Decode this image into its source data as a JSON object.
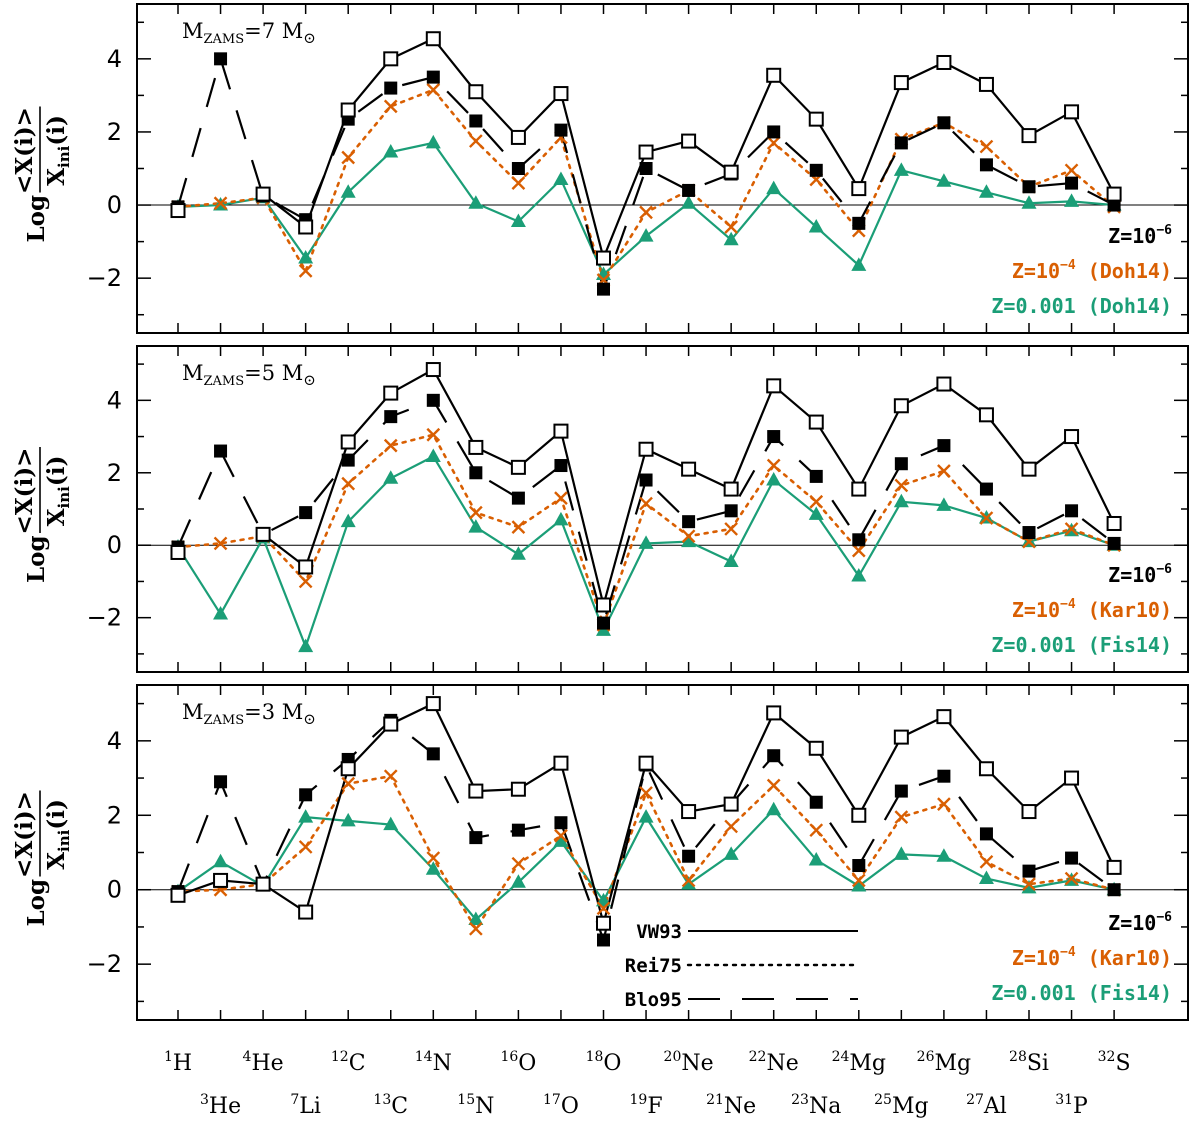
{
  "chart_data": {
    "type": "line",
    "ylabel": "Log <X(i)>/X_ini(i)",
    "ylabel_parts": {
      "log": "Log",
      "numerator": "<X(i)>",
      "denominator": "X",
      "denominator_sub": "ini",
      "denominator_tail": "(i)"
    },
    "ylim": [
      -3.5,
      5.5
    ],
    "yticks": [
      -2,
      0,
      2,
      4
    ],
    "ytick_labels": [
      "−2",
      "0",
      "2",
      "4"
    ],
    "isotopes": [
      {
        "mass": "1",
        "el": "H",
        "row": 1
      },
      {
        "mass": "3",
        "el": "He",
        "row": 2
      },
      {
        "mass": "4",
        "el": "He",
        "row": 1
      },
      {
        "mass": "7",
        "el": "Li",
        "row": 2
      },
      {
        "mass": "12",
        "el": "C",
        "row": 1
      },
      {
        "mass": "13",
        "el": "C",
        "row": 2
      },
      {
        "mass": "14",
        "el": "N",
        "row": 1
      },
      {
        "mass": "15",
        "el": "N",
        "row": 2
      },
      {
        "mass": "16",
        "el": "O",
        "row": 1
      },
      {
        "mass": "17",
        "el": "O",
        "row": 2
      },
      {
        "mass": "18",
        "el": "O",
        "row": 1
      },
      {
        "mass": "19",
        "el": "F",
        "row": 2
      },
      {
        "mass": "20",
        "el": "Ne",
        "row": 1
      },
      {
        "mass": "21",
        "el": "Ne",
        "row": 2
      },
      {
        "mass": "22",
        "el": "Ne",
        "row": 1
      },
      {
        "mass": "23",
        "el": "Na",
        "row": 2
      },
      {
        "mass": "24",
        "el": "Mg",
        "row": 1
      },
      {
        "mass": "25",
        "el": "Mg",
        "row": 2
      },
      {
        "mass": "26",
        "el": "Mg",
        "row": 1
      },
      {
        "mass": "27",
        "el": "Al",
        "row": 2
      },
      {
        "mass": "28",
        "el": "Si",
        "row": 1
      },
      {
        "mass": "31",
        "el": "P",
        "row": 2
      },
      {
        "mass": "32",
        "el": "S",
        "row": 1
      }
    ],
    "colors": {
      "black": "#000000",
      "orange": "#d95f02",
      "green": "#1b9e77"
    },
    "legend": {
      "position": "bottom-center of lowest panel",
      "items": [
        {
          "label": "VW93",
          "style": "solid"
        },
        {
          "label": "Rei75",
          "style": "dotted"
        },
        {
          "label": "Blo95",
          "style": "dashed"
        }
      ]
    },
    "panels": [
      {
        "mass_label": {
          "prefix": "M",
          "sub": "ZAMS",
          "value": "=7",
          "unit": "M",
          "sun": "⊙"
        },
        "z_labels": [
          {
            "text": "Z=10",
            "exp": "−6",
            "tail": "",
            "color": "#000000"
          },
          {
            "text": "Z=10",
            "exp": "−4",
            "tail": " (Doh14)",
            "color": "#d95f02"
          },
          {
            "text": "Z=0.001 (Doh14)",
            "exp": "",
            "tail": "",
            "color": "#1b9e77"
          }
        ],
        "series": [
          {
            "name": "Z=1e-6 VW93 (open squares)",
            "marker": "open-square",
            "line": "solid",
            "color": "#000000",
            "values": [
              -0.15,
              null,
              0.3,
              -0.6,
              2.6,
              4.0,
              4.55,
              3.1,
              1.85,
              3.05,
              -1.45,
              1.45,
              1.75,
              0.9,
              3.55,
              2.35,
              0.45,
              3.35,
              3.9,
              3.3,
              1.9,
              2.55,
              0.3
            ]
          },
          {
            "name": "Z=1e-6 Blo95 (filled squares)",
            "marker": "filled-square",
            "line": "dashed",
            "color": "#000000",
            "values": [
              -0.05,
              4.0,
              0.25,
              -0.4,
              2.35,
              3.2,
              3.5,
              2.3,
              1.0,
              2.05,
              -2.3,
              1.0,
              0.4,
              0.85,
              2.0,
              0.95,
              -0.5,
              1.7,
              2.25,
              1.1,
              0.5,
              0.6,
              0.0
            ]
          },
          {
            "name": "Z=1e-4 Rei75 (crosses)",
            "marker": "cross",
            "line": "dotted",
            "color": "#d95f02",
            "values": [
              -0.05,
              0.05,
              0.2,
              -1.8,
              1.3,
              2.7,
              3.15,
              1.75,
              0.6,
              1.85,
              -2.05,
              -0.2,
              0.4,
              -0.6,
              1.7,
              0.7,
              -0.7,
              1.8,
              2.25,
              1.6,
              0.5,
              0.95,
              -0.05
            ]
          },
          {
            "name": "Z=0.001 (triangles)",
            "marker": "filled-triangle",
            "line": "solid",
            "color": "#1b9e77",
            "values": [
              -0.05,
              0.0,
              0.2,
              -1.45,
              0.35,
              1.45,
              1.7,
              0.05,
              -0.45,
              0.7,
              -1.9,
              -0.85,
              0.05,
              -0.95,
              0.45,
              -0.6,
              -1.65,
              0.95,
              0.65,
              0.35,
              0.05,
              0.1,
              0.0
            ]
          }
        ]
      },
      {
        "mass_label": {
          "prefix": "M",
          "sub": "ZAMS",
          "value": "=5",
          "unit": "M",
          "sun": "⊙"
        },
        "z_labels": [
          {
            "text": "Z=10",
            "exp": "−6",
            "tail": "",
            "color": "#000000"
          },
          {
            "text": "Z=10",
            "exp": "−4",
            "tail": " (Kar10)",
            "color": "#d95f02"
          },
          {
            "text": "Z=0.001 (Fis14)",
            "exp": "",
            "tail": "",
            "color": "#1b9e77"
          }
        ],
        "series": [
          {
            "name": "Z=1e-6 VW93 (open squares)",
            "marker": "open-square",
            "line": "solid",
            "color": "#000000",
            "values": [
              -0.2,
              null,
              0.3,
              -0.6,
              2.85,
              4.2,
              4.85,
              2.7,
              2.15,
              3.15,
              -1.65,
              2.65,
              2.1,
              1.55,
              4.4,
              3.4,
              1.55,
              3.85,
              4.45,
              3.6,
              2.1,
              3.0,
              0.6
            ]
          },
          {
            "name": "Z=1e-6 Blo95 (filled squares)",
            "marker": "filled-square",
            "line": "dashed",
            "color": "#000000",
            "values": [
              -0.05,
              2.6,
              0.3,
              0.9,
              2.35,
              3.55,
              4.0,
              2.0,
              1.3,
              2.2,
              -2.15,
              1.8,
              0.65,
              0.95,
              3.0,
              1.9,
              0.15,
              2.25,
              2.75,
              1.55,
              0.35,
              0.95,
              0.05
            ]
          },
          {
            "name": "Z=1e-4 Rei75 (crosses)",
            "marker": "cross",
            "line": "dotted",
            "color": "#d95f02",
            "values": [
              -0.05,
              0.05,
              0.25,
              -1.0,
              1.7,
              2.75,
              3.05,
              0.9,
              0.5,
              1.3,
              -2.2,
              1.15,
              0.25,
              0.45,
              2.2,
              1.2,
              -0.15,
              1.65,
              2.05,
              0.75,
              0.1,
              0.45,
              0.0
            ]
          },
          {
            "name": "Z=0.001 (triangles)",
            "marker": "filled-triangle",
            "line": "solid",
            "color": "#1b9e77",
            "values": [
              -0.05,
              -1.9,
              0.2,
              -2.8,
              0.65,
              1.85,
              2.45,
              0.5,
              -0.25,
              0.7,
              -2.35,
              0.05,
              0.1,
              -0.45,
              1.8,
              0.85,
              -0.85,
              1.2,
              1.1,
              0.75,
              0.1,
              0.4,
              0.0
            ]
          }
        ]
      },
      {
        "mass_label": {
          "prefix": "M",
          "sub": "ZAMS",
          "value": "=3",
          "unit": "M",
          "sun": "⊙"
        },
        "z_labels": [
          {
            "text": "Z=10",
            "exp": "−6",
            "tail": "",
            "color": "#000000"
          },
          {
            "text": "Z=10",
            "exp": "−4",
            "tail": " (Kar10)",
            "color": "#d95f02"
          },
          {
            "text": "Z=0.001 (Fis14)",
            "exp": "",
            "tail": "",
            "color": "#1b9e77"
          }
        ],
        "series": [
          {
            "name": "Z=1e-6 VW93 (open squares)",
            "marker": "open-square",
            "line": "solid",
            "color": "#000000",
            "values": [
              -0.15,
              0.25,
              0.15,
              -0.6,
              3.25,
              4.45,
              5.0,
              2.65,
              2.7,
              3.4,
              -0.9,
              3.4,
              2.1,
              2.3,
              4.75,
              3.8,
              2.0,
              4.1,
              4.65,
              3.25,
              2.1,
              3.0,
              0.6
            ]
          },
          {
            "name": "Z=1e-6 Blo95 (filled squares)",
            "marker": "filled-square",
            "line": "dashed",
            "color": "#000000",
            "values": [
              -0.05,
              2.9,
              0.15,
              2.55,
              3.5,
              4.55,
              3.65,
              1.4,
              1.6,
              1.8,
              -1.35,
              3.35,
              0.9,
              2.3,
              3.6,
              2.35,
              0.65,
              2.65,
              3.05,
              1.5,
              0.5,
              0.85,
              0.0
            ]
          },
          {
            "name": "Z=1e-4 Rei75 (crosses)",
            "marker": "cross",
            "line": "dotted",
            "color": "#d95f02",
            "values": [
              -0.05,
              0.0,
              0.15,
              1.15,
              2.85,
              3.05,
              0.85,
              -1.05,
              0.7,
              1.45,
              -0.5,
              2.6,
              0.25,
              1.7,
              2.8,
              1.6,
              0.25,
              1.95,
              2.3,
              0.75,
              0.15,
              0.3,
              0.0
            ]
          },
          {
            "name": "Z=0.001 (triangles)",
            "marker": "filled-triangle",
            "line": "solid",
            "color": "#1b9e77",
            "values": [
              -0.05,
              0.75,
              0.1,
              1.95,
              1.85,
              1.75,
              0.55,
              -0.8,
              0.2,
              1.3,
              -0.3,
              1.95,
              0.15,
              0.95,
              2.15,
              0.8,
              0.1,
              0.95,
              0.9,
              0.3,
              0.05,
              0.25,
              0.0
            ]
          }
        ]
      }
    ]
  }
}
